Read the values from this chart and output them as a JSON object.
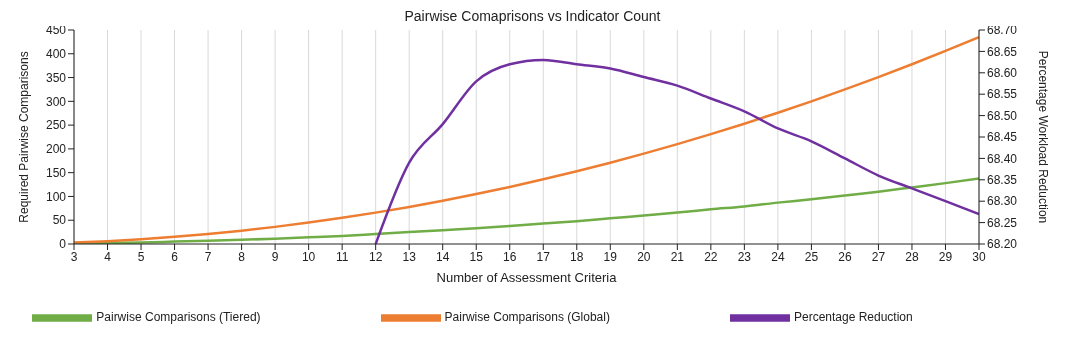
{
  "chart_data": {
    "type": "line",
    "title": "Pairwise Comaprisons vs Indicator Count",
    "xlabel": "Number of Assessment Criteria",
    "ylabel": "Required Pairwise Comparisons",
    "y2label": "Percentage Workload Reduction",
    "x": [
      3,
      4,
      5,
      6,
      7,
      8,
      9,
      10,
      11,
      12,
      13,
      14,
      15,
      16,
      17,
      18,
      19,
      20,
      21,
      22,
      23,
      24,
      25,
      26,
      27,
      28,
      29,
      30
    ],
    "xlim": [
      3,
      30
    ],
    "xticks": [
      3,
      4,
      5,
      6,
      7,
      8,
      9,
      10,
      11,
      12,
      13,
      14,
      15,
      16,
      17,
      18,
      19,
      20,
      21,
      22,
      23,
      24,
      25,
      26,
      27,
      28,
      29,
      30
    ],
    "ylim": [
      0,
      450
    ],
    "yticks": [
      0,
      50,
      100,
      150,
      200,
      250,
      300,
      350,
      400,
      450
    ],
    "y2lim": [
      68.2,
      68.7
    ],
    "y2ticks": [
      {
        "value": 68.2,
        "label": "68.20"
      },
      {
        "value": 68.25,
        "label": "68.25"
      },
      {
        "value": 68.3,
        "label": "68.30"
      },
      {
        "value": 68.35,
        "label": "68.35"
      },
      {
        "value": 68.4,
        "label": "68.40"
      },
      {
        "value": 68.45,
        "label": "68.45"
      },
      {
        "value": 68.5,
        "label": "68.50"
      },
      {
        "value": 68.55,
        "label": "68.55"
      },
      {
        "value": 68.6,
        "label": "68.60"
      },
      {
        "value": 68.65,
        "label": "68.65"
      },
      {
        "value": 68.7,
        "label": "68.70"
      }
    ],
    "grid": true,
    "legend": "bottom",
    "marker": "none",
    "line_style": "solid",
    "series": [
      {
        "name": "Pairwise Comparisons (Tiered)",
        "color": "#70ad47",
        "values": [
          1,
          2,
          3,
          5,
          7,
          9,
          11,
          14,
          17,
          21,
          25,
          29,
          33,
          38,
          43,
          48,
          54,
          60,
          66,
          73,
          79,
          87,
          94,
          102,
          110,
          119,
          128,
          138
        ]
      },
      {
        "name": "Pairwise Comparisons (Global)",
        "color": "#ed7d31",
        "values": [
          3,
          6,
          10,
          15,
          21,
          28,
          36,
          45,
          55,
          66,
          78,
          91,
          105,
          120,
          136,
          153,
          171,
          190,
          210,
          231,
          253,
          276,
          300,
          325,
          351,
          378,
          406,
          435
        ]
      },
      {
        "name": "Percentage Reduction",
        "color": "#7030a0",
        "axis": "y2",
        "x": [
          12,
          13,
          14,
          15,
          16,
          17,
          18,
          19,
          20,
          21,
          22,
          23,
          24,
          25,
          26,
          27,
          28,
          29,
          30
        ],
        "values": [
          68.2,
          68.39,
          68.48,
          68.58,
          68.62,
          68.63,
          68.62,
          68.61,
          68.59,
          68.57,
          68.54,
          68.51,
          68.47,
          68.44,
          68.4,
          68.36,
          68.33,
          68.3,
          68.27
        ]
      }
    ]
  }
}
